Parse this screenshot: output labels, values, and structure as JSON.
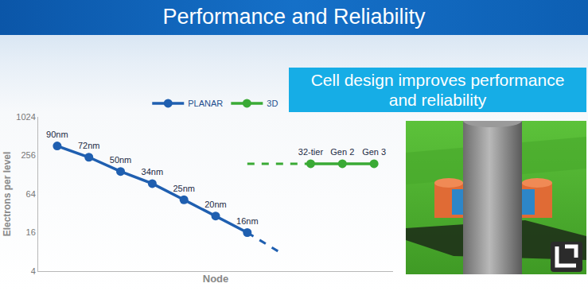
{
  "slide": {
    "title": "Performance and Reliability",
    "callout": "Cell design improves performance and reliability"
  },
  "chart_data": {
    "type": "line",
    "x_label": "Node",
    "y_label": "Electrons per level",
    "log": "y",
    "ylim": [
      4,
      1024
    ],
    "yticks": [
      4,
      16,
      64,
      256,
      1024
    ],
    "xlim": [
      -0.6,
      10.6
    ],
    "xticks": [],
    "tick_labels": "y",
    "grid": false,
    "legend": "top",
    "series": [
      {
        "name": "PLANAR",
        "color": "#1f5fb0",
        "marker": "circle",
        "line_style": "solid",
        "x": [
          0,
          1,
          2,
          3,
          4,
          5,
          6
        ],
        "values": [
          360,
          240,
          144,
          93,
          52,
          29,
          16
        ],
        "point_labels": [
          "90nm",
          "72nm",
          "50nm",
          "34nm",
          "25nm",
          "20nm",
          "16nm"
        ],
        "trend": {
          "x": [
            6,
            7
          ],
          "values": [
            16,
            8
          ],
          "line_style": "dash"
        }
      },
      {
        "name": "3D",
        "color": "#3aaa35",
        "marker": "circle",
        "line_style": "solid",
        "x": [
          8,
          9,
          10
        ],
        "values": [
          190,
          190,
          190
        ],
        "point_labels": [
          "32-tier",
          "Gen 2",
          "Gen 3"
        ],
        "trend": {
          "x": [
            6,
            8
          ],
          "values": [
            190,
            190
          ],
          "line_style": "dash"
        }
      }
    ]
  }
}
